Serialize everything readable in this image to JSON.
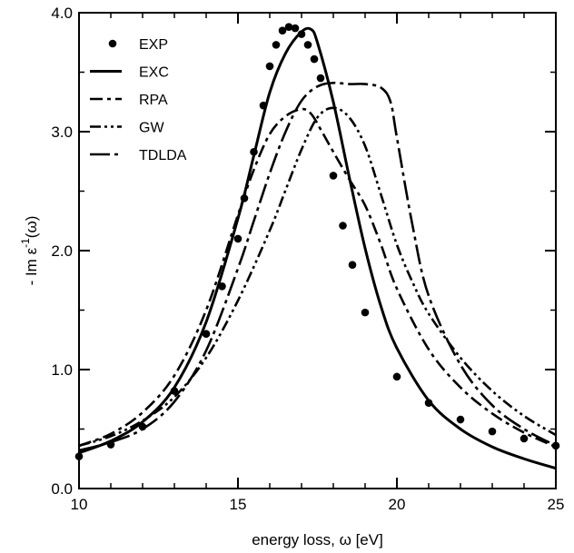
{
  "chart_data": {
    "type": "line",
    "title": "",
    "xlabel": "energy loss, ω [eV]",
    "ylabel_parts": [
      "- Im ε",
      "-1",
      "(ω)"
    ],
    "xlim": [
      10,
      25
    ],
    "ylim": [
      0,
      4
    ],
    "x_ticks": [
      10,
      15,
      20,
      25
    ],
    "x_tick_labels": [
      "10",
      "15",
      "20",
      "25"
    ],
    "y_ticks": [
      0,
      1,
      2,
      3,
      4
    ],
    "y_tick_labels": [
      "0.0",
      "1.0",
      "2.0",
      "3.0",
      "4.0"
    ],
    "grid": false,
    "legend_placement": "top-left",
    "series": [
      {
        "name": "EXP",
        "style": "points",
        "color": "#000000",
        "x": [
          10.0,
          11.0,
          12.0,
          13.0,
          14.0,
          14.5,
          15.0,
          15.2,
          15.5,
          15.8,
          16.0,
          16.2,
          16.4,
          16.6,
          16.8,
          17.0,
          17.2,
          17.4,
          17.6,
          18.0,
          18.3,
          18.6,
          19.0,
          20.0,
          21.0,
          22.0,
          23.0,
          24.0,
          25.0
        ],
        "y": [
          0.27,
          0.37,
          0.52,
          0.82,
          1.3,
          1.7,
          2.1,
          2.44,
          2.83,
          3.22,
          3.55,
          3.73,
          3.85,
          3.88,
          3.87,
          3.82,
          3.73,
          3.61,
          3.45,
          2.63,
          2.21,
          1.88,
          1.48,
          0.94,
          0.72,
          0.58,
          0.48,
          0.42,
          0.36
        ]
      },
      {
        "name": "EXC",
        "style": "solid",
        "color": "#000000",
        "x": [
          10,
          11,
          12,
          13,
          14,
          15,
          15.5,
          16,
          16.5,
          17,
          17.3,
          17.5,
          18,
          18.5,
          19,
          19.5,
          20,
          21,
          22,
          23,
          24,
          25
        ],
        "y": [
          0.3,
          0.4,
          0.56,
          0.85,
          1.4,
          2.27,
          2.8,
          3.33,
          3.66,
          3.84,
          3.86,
          3.75,
          3.25,
          2.62,
          2.02,
          1.53,
          1.18,
          0.74,
          0.5,
          0.35,
          0.25,
          0.17
        ]
      },
      {
        "name": "RPA",
        "style": "dash-dot",
        "color": "#000000",
        "x": [
          10,
          11,
          12,
          13,
          14,
          15,
          15.5,
          16,
          16.5,
          17,
          17.3,
          17.6,
          18,
          18.5,
          19,
          19.5,
          20,
          21,
          22,
          23,
          24,
          25
        ],
        "y": [
          0.36,
          0.46,
          0.64,
          0.95,
          1.5,
          2.3,
          2.68,
          2.98,
          3.13,
          3.19,
          3.15,
          3.02,
          2.83,
          2.6,
          2.38,
          2.05,
          1.68,
          1.17,
          0.85,
          0.63,
          0.47,
          0.35
        ]
      },
      {
        "name": "GW",
        "style": "dash-dot-dot",
        "color": "#000000",
        "x": [
          10,
          11,
          12,
          13,
          14,
          15,
          16,
          16.5,
          17,
          17.5,
          18,
          18.5,
          19,
          19.5,
          20,
          20.5,
          21,
          22,
          23,
          24,
          25
        ],
        "y": [
          0.36,
          0.44,
          0.57,
          0.77,
          1.1,
          1.58,
          2.17,
          2.51,
          2.85,
          3.12,
          3.2,
          3.12,
          2.88,
          2.47,
          2.05,
          1.73,
          1.47,
          1.1,
          0.82,
          0.61,
          0.45
        ]
      },
      {
        "name": "TDLDA",
        "style": "long-dash-dot",
        "color": "#000000",
        "x": [
          10,
          11,
          12,
          13,
          14,
          15,
          15.5,
          16,
          16.5,
          17,
          17.5,
          18,
          18.5,
          19,
          19.5,
          19.8,
          20,
          20.5,
          21,
          22,
          23,
          24,
          25
        ],
        "y": [
          0.32,
          0.39,
          0.5,
          0.73,
          1.16,
          1.85,
          2.25,
          2.65,
          3.0,
          3.26,
          3.38,
          3.41,
          3.4,
          3.4,
          3.37,
          3.25,
          2.95,
          2.2,
          1.62,
          1.04,
          0.7,
          0.5,
          0.36
        ]
      }
    ]
  }
}
